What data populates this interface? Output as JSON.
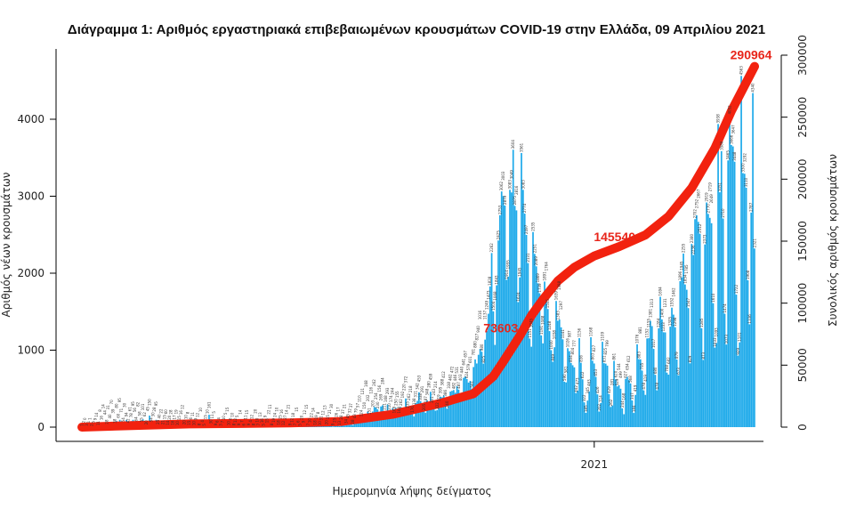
{
  "chart_data": {
    "type": "bar+line",
    "title": "Διάγραμμα 1: Αριθμός εργαστηριακά επιβεβαιωμένων κρουσμάτων COVID-19 στην Ελλάδα, 09 Απριλίου 2021",
    "xlabel": "Ημερομηνία λήψης δείγματος",
    "ylabel_left": "Αριθμός νέων κρουσμάτων",
    "ylabel_right": "Συνολικός αριθμός κρουσμάτων",
    "x_range": [
      "2020-02-26",
      "2021-04-08"
    ],
    "x_ticks": [
      {
        "date": "2021-01-01",
        "label": "2021"
      }
    ],
    "ylim_left": [
      0,
      4000
    ],
    "yticks_left": [
      0,
      1000,
      2000,
      3000,
      4000
    ],
    "ylim_right": [
      0,
      300000
    ],
    "yticks_right": [
      0,
      50000,
      100000,
      150000,
      200000,
      250000,
      300000
    ],
    "grid": false,
    "colors": {
      "bars": "#1eaaea",
      "cumulative": "#f2220f"
    },
    "daily_cases": [
      1,
      2,
      0,
      3,
      1,
      1,
      2,
      5,
      9,
      14,
      11,
      8,
      16,
      14,
      44,
      28,
      31,
      40,
      70,
      39,
      38,
      80,
      60,
      95,
      71,
      54,
      30,
      94,
      42,
      61,
      78,
      95,
      56,
      64,
      82,
      58,
      55,
      101,
      62,
      20,
      45,
      150,
      54,
      30,
      28,
      95,
      25,
      40,
      22,
      21,
      15,
      60,
      14,
      20,
      28,
      16,
      17,
      19,
      10,
      15,
      16,
      12,
      20,
      10,
      8,
      15,
      6,
      11,
      10,
      9,
      12,
      8,
      10,
      4,
      5,
      15,
      10,
      161,
      30,
      11,
      5,
      9,
      6,
      4,
      3,
      7,
      10,
      5,
      15,
      10,
      6,
      10,
      8,
      12,
      5,
      9,
      14,
      7,
      6,
      11,
      15,
      9,
      4,
      12,
      8,
      20,
      10,
      7,
      13,
      16,
      5,
      9,
      15,
      22,
      11,
      8,
      19,
      24,
      10,
      18,
      25,
      16,
      12,
      27,
      14,
      21,
      9,
      12,
      18,
      7,
      15,
      6,
      5,
      20,
      9,
      12,
      15,
      7,
      10,
      22,
      14,
      18,
      19,
      8,
      10,
      31,
      12,
      13,
      20,
      15,
      21,
      30,
      9,
      25,
      26,
      17,
      13,
      28,
      37,
      21,
      34,
      45,
      32,
      37,
      28,
      43,
      79,
      57,
      110,
      124,
      121,
      150,
      168,
      202,
      151,
      126,
      203,
      262,
      254,
      230,
      156,
      269,
      284,
      211,
      168,
      293,
      210,
      174,
      244,
      169,
      250,
      155,
      168,
      262,
      192,
      220,
      372,
      235,
      262,
      218,
      176,
      138,
      311,
      342,
      453,
      338,
      291,
      205,
      187,
      348,
      280,
      459,
      301,
      243,
      214,
      222,
      319,
      395,
      388,
      412,
      386,
      240,
      338,
      462,
      472,
      482,
      446,
      531,
      487,
      403,
      440,
      641,
      657,
      624,
      579,
      601,
      501,
      781,
      880,
      827,
      940,
      1016,
      980,
      825,
      1137,
      1249,
      1473,
      1828,
      2262,
      1504,
      1068,
      1843,
      2425,
      2753,
      3062,
      3003,
      2879,
      1914,
      1955,
      3083,
      3049,
      3604,
      2875,
      2816,
      1624,
      1945,
      3561,
      3083,
      2774,
      2497,
      2131,
      1151,
      1045,
      2535,
      2251,
      2089,
      1869,
      1739,
      1191,
      1088,
      1891,
      1764,
      1535,
      1248,
      1000,
      849,
      1038,
      1639,
      1383,
      1398,
      1297,
      1141,
      590,
      581,
      1026,
      987,
      834,
      804,
      777,
      442,
      473,
      1156,
      836,
      622,
      322,
      185,
      345,
      463,
      1168,
      863,
      827,
      653,
      426,
      202,
      314,
      1109,
      831,
      825,
      799,
      429,
      262,
      281,
      861,
      620,
      529,
      544,
      499,
      244,
      168,
      627,
      654,
      612,
      568,
      347,
      184,
      419,
      1076,
      883,
      881,
      735,
      478,
      419,
      1152,
      1155,
      1381,
      1313,
      1017,
      680,
      478,
      1284,
      1694,
      1400,
      1233,
      1231,
      708,
      682,
      1305,
      1552,
      1462,
      1298,
      879,
      673,
      1896,
      1945,
      2255,
      1854,
      1785,
      1547,
      829,
      2380,
      2236,
      2702,
      2752,
      2667,
      2512,
      1285,
      873,
      2373,
      2919,
      2770,
      2719,
      2649,
      1610,
      1033,
      1093,
      3938,
      3051,
      3586,
      2710,
      1474,
      1073,
      3465,
      4052,
      3666,
      3647,
      3448,
      1722,
      929,
      1101,
      4563,
      3300,
      3292,
      3110,
      1908,
      1336,
      2787,
      4340,
      2321
    ],
    "cumulative": [
      {
        "date": "2020-02-26",
        "value": 1
      },
      {
        "date": "2020-04-01",
        "value": 1400
      },
      {
        "date": "2020-05-01",
        "value": 2600
      },
      {
        "date": "2020-06-01",
        "value": 2950
      },
      {
        "date": "2020-07-01",
        "value": 3400
      },
      {
        "date": "2020-08-01",
        "value": 4500
      },
      {
        "date": "2020-09-01",
        "value": 10300
      },
      {
        "date": "2020-10-01",
        "value": 19600
      },
      {
        "date": "2020-10-20",
        "value": 27000
      },
      {
        "date": "2020-11-01",
        "value": 41000
      },
      {
        "date": "2020-11-07",
        "value": 53000
      },
      {
        "date": "2020-11-17",
        "value": 73603
      },
      {
        "date": "2020-11-24",
        "value": 90000
      },
      {
        "date": "2020-12-01",
        "value": 103000
      },
      {
        "date": "2020-12-10",
        "value": 118000
      },
      {
        "date": "2020-12-20",
        "value": 129000
      },
      {
        "date": "2021-01-01",
        "value": 138000
      },
      {
        "date": "2021-01-16",
        "value": 145540
      },
      {
        "date": "2021-02-01",
        "value": 155000
      },
      {
        "date": "2021-02-15",
        "value": 170000
      },
      {
        "date": "2021-03-01",
        "value": 193000
      },
      {
        "date": "2021-03-15",
        "value": 225000
      },
      {
        "date": "2021-03-25",
        "value": 255000
      },
      {
        "date": "2021-04-08",
        "value": 290964
      }
    ],
    "annotations": [
      {
        "date": "2020-11-17",
        "value": 73603,
        "label": "73603"
      },
      {
        "date": "2021-01-16",
        "value": 145540,
        "label": "145540"
      },
      {
        "date": "2021-04-08",
        "value": 290964,
        "label": "290964"
      }
    ]
  }
}
